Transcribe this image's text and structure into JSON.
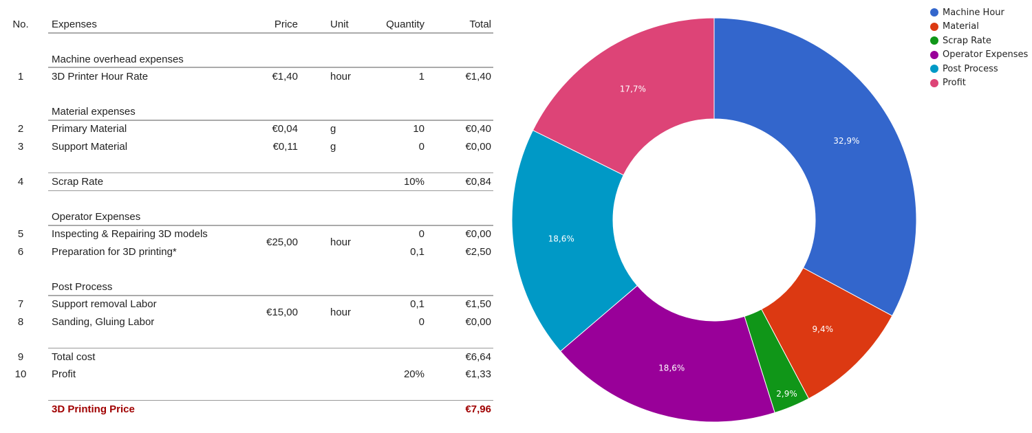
{
  "table": {
    "headers": {
      "no": "No.",
      "expenses": "Expenses",
      "price": "Price",
      "unit": "Unit",
      "quantity": "Quantity",
      "total": "Total"
    },
    "sections": [
      "Machine overhead expenses",
      "Material expenses",
      "Operator Expenses",
      "Post Process"
    ],
    "rows": [
      {
        "no": "1",
        "name": "3D Printer Hour Rate",
        "price": "€1,40",
        "unit": "hour",
        "qty": "1",
        "total": "€1,40"
      },
      {
        "no": "2",
        "name": "Primary Material",
        "price": "€0,04",
        "unit": "g",
        "qty": "10",
        "total": "€0,40"
      },
      {
        "no": "3",
        "name": "Support Material",
        "price": "€0,11",
        "unit": "g",
        "qty": "0",
        "total": "€0,00"
      },
      {
        "no": "4",
        "name": "Scrap Rate",
        "price": "",
        "unit": "",
        "qty": "10%",
        "total": "€0,84"
      },
      {
        "no": "5",
        "name": "Inspecting & Repairing 3D models",
        "price": "",
        "unit": "",
        "qty": "0",
        "total": "€0,00"
      },
      {
        "no": "6",
        "name": "Preparation for 3D printing*",
        "price": "",
        "unit": "",
        "qty": "0,1",
        "total": "€2,50"
      },
      {
        "no": "7",
        "name": "Support removal Labor",
        "price": "",
        "unit": "",
        "qty": "0,1",
        "total": "€1,50"
      },
      {
        "no": "8",
        "name": "Sanding, Gluing Labor",
        "price": "",
        "unit": "",
        "qty": "0",
        "total": "€0,00"
      },
      {
        "no": "9",
        "name": "Total cost",
        "price": "",
        "unit": "",
        "qty": "",
        "total": "€6,64"
      },
      {
        "no": "10",
        "name": "Profit",
        "price": "",
        "unit": "",
        "qty": "20%",
        "total": "€1,33"
      }
    ],
    "operator_price": "€25,00",
    "operator_unit": "hour",
    "post_price": "€15,00",
    "post_unit": "hour",
    "final_label": "3D Printing Price",
    "final_total": "€7,96"
  },
  "chart_data": {
    "type": "pie",
    "donut": true,
    "categories": [
      "Machine Hour",
      "Material",
      "Scrap Rate",
      "Operator Expenses",
      "Post Process",
      "Profit"
    ],
    "values": [
      32.9,
      9.4,
      2.9,
      18.6,
      18.6,
      17.7
    ],
    "labels": [
      "32,9%",
      "9,4%",
      "2,9%",
      "18,6%",
      "18,6%",
      "17,7%"
    ],
    "colors": [
      "#3366cc",
      "#dc3912",
      "#109618",
      "#990099",
      "#0099c6",
      "#dd4477"
    ],
    "legend": "top-right"
  }
}
